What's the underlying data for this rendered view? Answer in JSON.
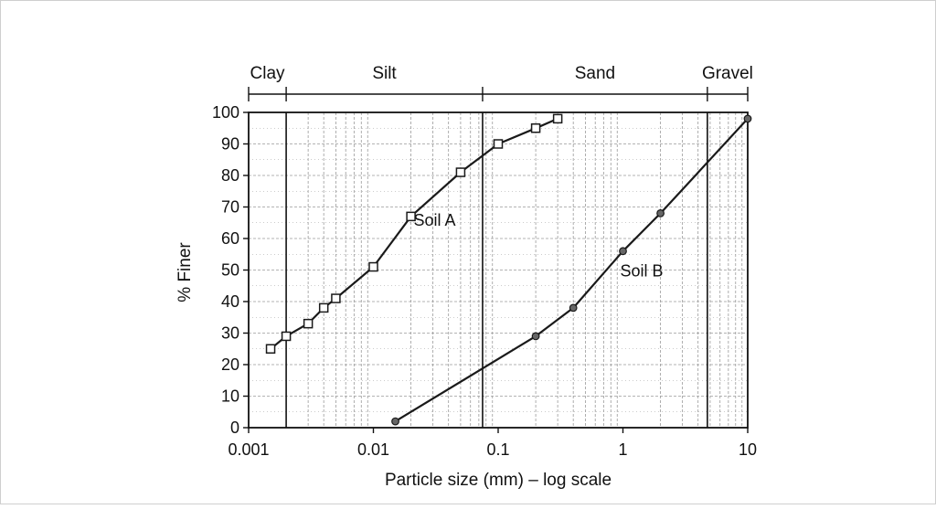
{
  "colors": {
    "axis": "#111111",
    "grid": "#9a9a9a",
    "series": "#1a1a1a",
    "marker_fill_a": "#ffffff",
    "marker_fill_b": "#666666",
    "frame_border": "#cfcfcf"
  },
  "chart_data": {
    "type": "line",
    "title": "",
    "xlabel": "Particle size (mm) – log scale",
    "ylabel": "% Finer",
    "x_scale": "log",
    "xlim": [
      0.001,
      10
    ],
    "ylim": [
      0,
      100
    ],
    "grid": true,
    "x_ticks": [
      0.001,
      0.01,
      0.1,
      1,
      10
    ],
    "x_tick_labels": [
      "0.001",
      "0.01",
      "0.1",
      "1",
      "10"
    ],
    "y_ticks": [
      0,
      10,
      20,
      30,
      40,
      50,
      60,
      70,
      80,
      90,
      100
    ],
    "y_tick_labels": [
      "0",
      "10",
      "20",
      "30",
      "40",
      "50",
      "60",
      "70",
      "80",
      "90",
      "100"
    ],
    "soil_classes": [
      {
        "label": "Clay",
        "from": 0.001,
        "to": 0.002
      },
      {
        "label": "Silt",
        "from": 0.002,
        "to": 0.075
      },
      {
        "label": "Sand",
        "from": 0.075,
        "to": 4.75
      },
      {
        "label": "Gravel",
        "from": 4.75,
        "to": 10
      }
    ],
    "class_boundaries": [
      0.002,
      0.075,
      4.75
    ],
    "series": [
      {
        "name": "Soil A",
        "marker": "square",
        "label_at": {
          "x": 0.021,
          "y": 64
        },
        "points": [
          {
            "x": 0.0015,
            "y": 25
          },
          {
            "x": 0.002,
            "y": 29
          },
          {
            "x": 0.003,
            "y": 33
          },
          {
            "x": 0.004,
            "y": 38
          },
          {
            "x": 0.005,
            "y": 41
          },
          {
            "x": 0.01,
            "y": 51
          },
          {
            "x": 0.02,
            "y": 67
          },
          {
            "x": 0.05,
            "y": 81
          },
          {
            "x": 0.1,
            "y": 90
          },
          {
            "x": 0.2,
            "y": 95
          },
          {
            "x": 0.3,
            "y": 98
          }
        ]
      },
      {
        "name": "Soil B",
        "marker": "circle",
        "label_at": {
          "x": 0.95,
          "y": 48
        },
        "points": [
          {
            "x": 0.015,
            "y": 2
          },
          {
            "x": 0.2,
            "y": 29
          },
          {
            "x": 0.4,
            "y": 38
          },
          {
            "x": 1,
            "y": 56
          },
          {
            "x": 2,
            "y": 68
          },
          {
            "x": 10,
            "y": 98
          }
        ]
      }
    ]
  }
}
